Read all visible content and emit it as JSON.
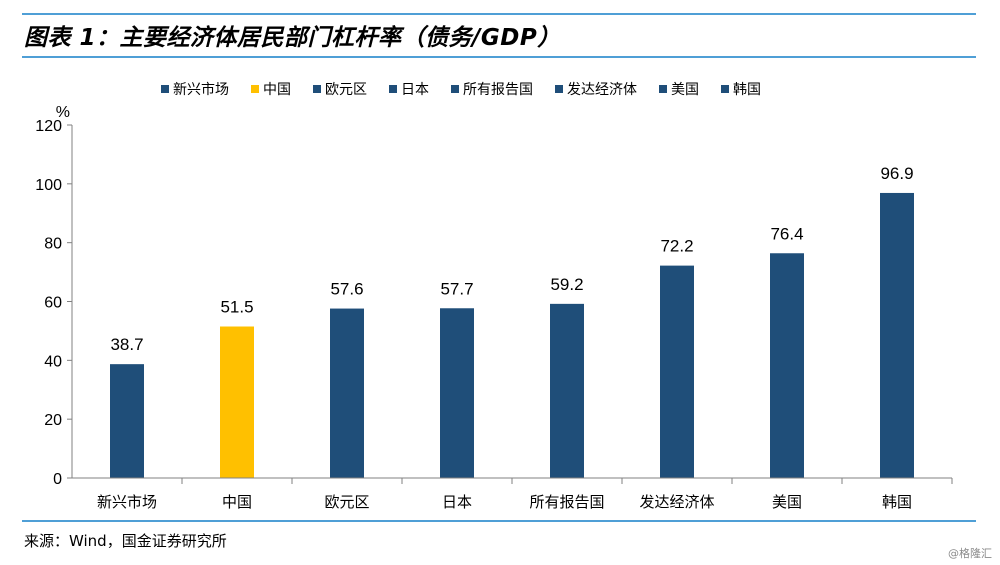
{
  "header": {
    "title": "图表 1：主要经济体居民部门杠杆率（债务/GDP）"
  },
  "footer": {
    "source": "来源：Wind，国金证券研究所",
    "watermark": "@格隆汇"
  },
  "colors": {
    "default_bar": "#1f4e79",
    "highlight_bar": "#ffc000",
    "rule": "#4f9fd6"
  },
  "chart_data": {
    "type": "bar",
    "title": "",
    "xlabel": "",
    "ylabel": "%",
    "ylim": [
      0,
      120
    ],
    "yticks": [
      0,
      20,
      40,
      60,
      80,
      100,
      120
    ],
    "categories": [
      "新兴市场",
      "中国",
      "欧元区",
      "日本",
      "所有报告国",
      "发达经济体",
      "美国",
      "韩国"
    ],
    "values": [
      38.7,
      51.5,
      57.6,
      57.7,
      59.2,
      72.2,
      76.4,
      96.9
    ],
    "value_labels": [
      "38.7",
      "51.5",
      "57.6",
      "57.7",
      "59.2",
      "72.2",
      "76.4",
      "96.9"
    ],
    "highlight_category": "中国",
    "legend": [
      "新兴市场",
      "中国",
      "欧元区",
      "日本",
      "所有报告国",
      "发达经济体",
      "美国",
      "韩国"
    ],
    "legend_position": "top",
    "grid": false
  }
}
